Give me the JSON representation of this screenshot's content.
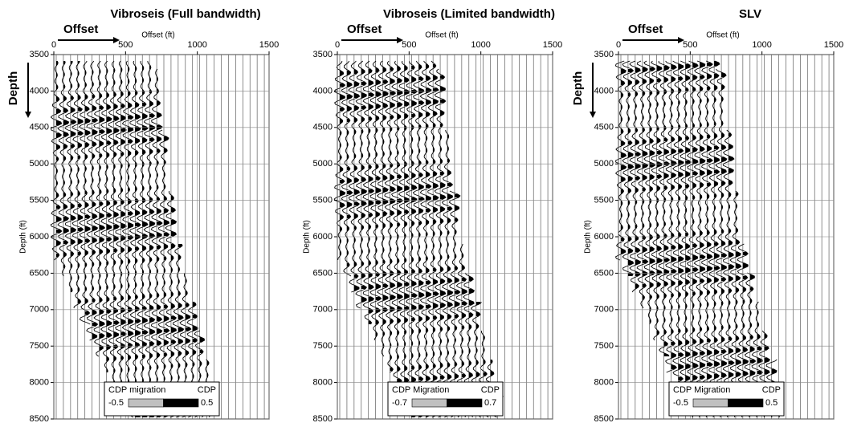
{
  "chart_data": [
    {
      "type": "wiggle",
      "title": "Vibroseis (Full bandwidth)",
      "xlabel": "Offset (ft)",
      "ylabel": "Depth (ft)",
      "annotations": {
        "offset": "Offset",
        "depth": "Depth"
      },
      "xlim": [
        0,
        1500
      ],
      "xticks": [
        0,
        500,
        1000,
        1500
      ],
      "ylim": [
        3500,
        8500
      ],
      "yticks": [
        3500,
        4000,
        4500,
        5000,
        5500,
        6000,
        6500,
        7000,
        7500,
        8000,
        8500
      ],
      "grid": true,
      "colorbar": {
        "label": "CDP migration",
        "label_right": "CDP",
        "clim": [
          -0.5,
          0.5
        ],
        "colors": [
          "#c0c0c0",
          "#000000"
        ]
      }
    },
    {
      "type": "wiggle",
      "title": "Vibroseis (Limited bandwidth)",
      "xlabel": "Offset (ft)",
      "ylabel": "Depth (ft)",
      "annotations": {
        "offset": "Offset"
      },
      "xlim": [
        0,
        1500
      ],
      "xticks": [
        0,
        500,
        1000,
        1500
      ],
      "ylim": [
        3500,
        8500
      ],
      "yticks": [
        3500,
        4000,
        4500,
        5000,
        5500,
        6000,
        6500,
        7000,
        7500,
        8000,
        8500
      ],
      "grid": true,
      "colorbar": {
        "label": "CDP Migration",
        "label_right": "CDP",
        "clim": [
          -0.7,
          0.7
        ],
        "colors": [
          "#c0c0c0",
          "#000000"
        ]
      }
    },
    {
      "type": "wiggle",
      "title": "SLV",
      "xlabel": "Offset (ft)",
      "ylabel": "Depth (ft)",
      "annotations": {
        "offset": "Offset",
        "depth": "Depth"
      },
      "xlim": [
        0,
        1500
      ],
      "xticks": [
        0,
        500,
        1000,
        1500
      ],
      "ylim": [
        3500,
        8500
      ],
      "yticks": [
        3500,
        4000,
        4500,
        5000,
        5500,
        6000,
        6500,
        7000,
        7500,
        8000,
        8500
      ],
      "grid": true,
      "colorbar": {
        "label": "CDP Migration",
        "label_right": "CDP",
        "clim": [
          -0.5,
          0.5
        ],
        "colors": [
          "#c0c0c0",
          "#000000"
        ]
      }
    }
  ]
}
